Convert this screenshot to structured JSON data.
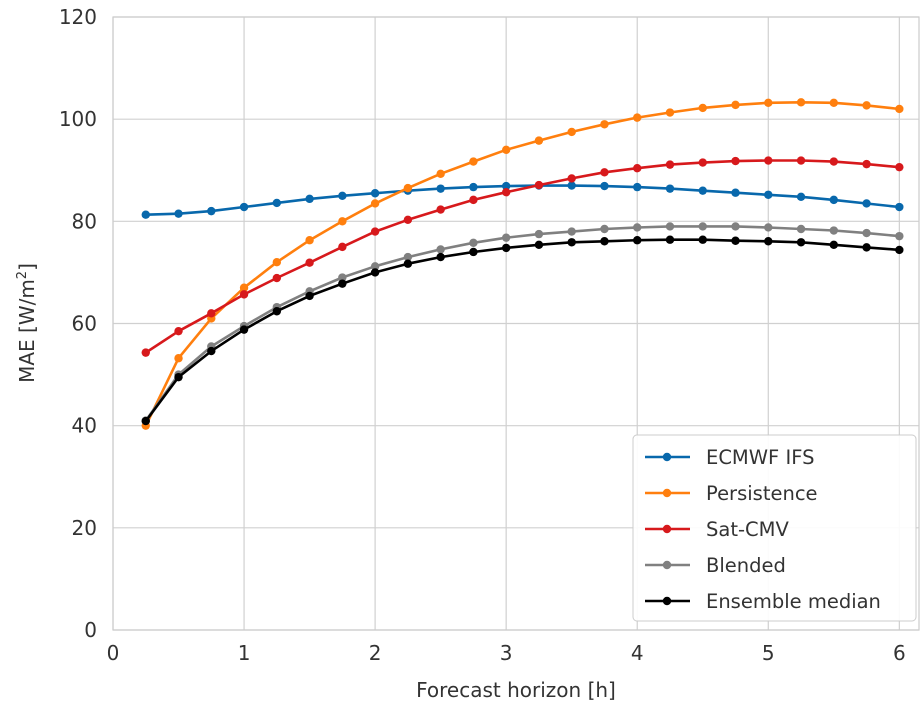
{
  "chart_data": {
    "type": "line",
    "xlabel": "Forecast horizon [h]",
    "ylabel_prefix": "MAE [W/m",
    "ylabel_sup": "2",
    "ylabel_suffix": "]",
    "xlim": [
      0,
      6.15
    ],
    "ylim": [
      0,
      120
    ],
    "xticks": [
      0,
      1,
      2,
      3,
      4,
      5,
      6
    ],
    "yticks": [
      0,
      20,
      40,
      60,
      80,
      100,
      120
    ],
    "grid": true,
    "legend_position": "bottom-right",
    "x": [
      0.25,
      0.5,
      0.75,
      1.0,
      1.25,
      1.5,
      1.75,
      2.0,
      2.25,
      2.5,
      2.75,
      3.0,
      3.25,
      3.5,
      3.75,
      4.0,
      4.25,
      4.5,
      4.75,
      5.0,
      5.25,
      5.5,
      5.75,
      6.0
    ],
    "series": [
      {
        "name": "ECMWF IFS",
        "color": "#0868ac",
        "values": [
          81.3,
          81.5,
          82.0,
          82.8,
          83.6,
          84.4,
          85.0,
          85.5,
          86.0,
          86.4,
          86.7,
          86.9,
          87.0,
          87.0,
          86.9,
          86.7,
          86.4,
          86.0,
          85.6,
          85.2,
          84.8,
          84.2,
          83.5,
          82.8
        ]
      },
      {
        "name": "Persistence",
        "color": "#ff7f0e",
        "values": [
          40.0,
          53.2,
          61.0,
          67.0,
          72.0,
          76.3,
          80.0,
          83.5,
          86.5,
          89.3,
          91.7,
          94.0,
          95.8,
          97.5,
          99.0,
          100.3,
          101.3,
          102.2,
          102.8,
          103.2,
          103.3,
          103.2,
          102.7,
          102.0
        ]
      },
      {
        "name": "Sat-CMV",
        "color": "#d7191c",
        "values": [
          54.3,
          58.5,
          62.0,
          65.7,
          68.9,
          71.9,
          75.0,
          78.0,
          80.3,
          82.3,
          84.2,
          85.7,
          87.1,
          88.4,
          89.6,
          90.4,
          91.1,
          91.5,
          91.8,
          91.9,
          91.9,
          91.7,
          91.2,
          90.6
        ]
      },
      {
        "name": "Blended",
        "color": "#808080",
        "values": [
          41.0,
          50.0,
          55.5,
          59.5,
          63.2,
          66.3,
          69.0,
          71.2,
          73.0,
          74.5,
          75.8,
          76.8,
          77.5,
          78.0,
          78.5,
          78.8,
          79.0,
          79.0,
          79.0,
          78.8,
          78.5,
          78.2,
          77.7,
          77.1
        ]
      },
      {
        "name": "Ensemble median",
        "color": "#000000",
        "values": [
          40.9,
          49.5,
          54.6,
          58.8,
          62.4,
          65.4,
          67.8,
          70.0,
          71.7,
          73.0,
          74.0,
          74.8,
          75.4,
          75.9,
          76.1,
          76.3,
          76.4,
          76.4,
          76.2,
          76.1,
          75.9,
          75.4,
          74.9,
          74.4
        ]
      }
    ]
  }
}
